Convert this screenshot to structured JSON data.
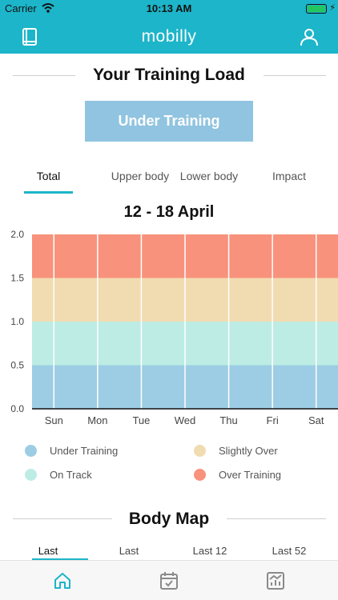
{
  "status_bar": {
    "carrier": "Carrier",
    "time": "10:13 AM"
  },
  "header": {
    "title": "mobilly",
    "left_icon": "book-icon",
    "right_icon": "profile-icon"
  },
  "training_load": {
    "title": "Your Training Load",
    "status_label": "Under Training",
    "tabs": [
      {
        "label": "Total",
        "active": true
      },
      {
        "label": "Upper body",
        "active": false
      },
      {
        "label": "Lower body",
        "active": false
      },
      {
        "label": "Impact",
        "active": false
      }
    ],
    "date_range": "12 - 18 April"
  },
  "chart_data": {
    "type": "area",
    "categories": [
      "Sun",
      "Mon",
      "Tue",
      "Wed",
      "Thu",
      "Fri",
      "Sat"
    ],
    "ylim": [
      0,
      2.0
    ],
    "y_ticks": [
      "2.0",
      "1.5",
      "1.0",
      "0.5",
      "0.0"
    ],
    "bands": [
      {
        "name": "Under Training",
        "from": 0.0,
        "to": 0.5,
        "color": "#9ccde4"
      },
      {
        "name": "On Track",
        "from": 0.5,
        "to": 1.0,
        "color": "#bdece5"
      },
      {
        "name": "Slightly Over",
        "from": 1.0,
        "to": 1.5,
        "color": "#f1dbb0"
      },
      {
        "name": "Over Training",
        "from": 1.5,
        "to": 2.0,
        "color": "#f8927c"
      }
    ],
    "grid": true
  },
  "legend": [
    {
      "label": "Under Training",
      "color": "#9ccde4"
    },
    {
      "label": "Slightly Over",
      "color": "#f1dbb0"
    },
    {
      "label": "On Track",
      "color": "#bdece5"
    },
    {
      "label": "Over Training",
      "color": "#f8927c"
    }
  ],
  "body_map": {
    "title": "Body Map",
    "tabs": [
      {
        "label": "Last",
        "active": true
      },
      {
        "label": "Last",
        "active": false
      },
      {
        "label": "Last 12",
        "active": false
      },
      {
        "label": "Last 52",
        "active": false
      }
    ]
  },
  "bottom_nav": {
    "items": [
      {
        "icon": "home-icon",
        "active": true
      },
      {
        "icon": "calendar-icon",
        "active": false
      },
      {
        "icon": "stats-icon",
        "active": false
      }
    ]
  },
  "colors": {
    "accent": "#1cb5c9",
    "status_pill": "#90c4e0"
  }
}
